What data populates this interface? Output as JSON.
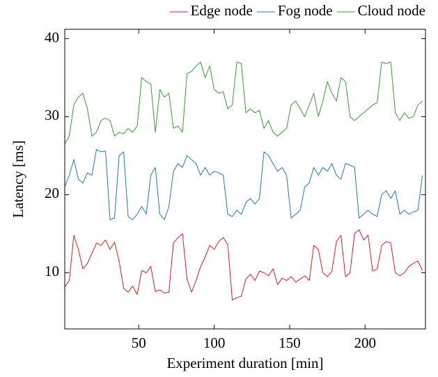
{
  "chart_data": {
    "type": "line",
    "xlabel": "Experiment duration [min]",
    "ylabel": "Latency [ms]",
    "x": [
      1,
      4,
      7,
      10,
      13,
      16,
      19,
      22,
      25,
      28,
      31,
      34,
      37,
      40,
      43,
      46,
      49,
      52,
      55,
      58,
      61,
      64,
      67,
      70,
      73,
      76,
      79,
      82,
      85,
      88,
      91,
      94,
      97,
      100,
      103,
      106,
      109,
      112,
      115,
      118,
      121,
      124,
      127,
      130,
      133,
      136,
      139,
      142,
      145,
      148,
      151,
      154,
      157,
      160,
      163,
      166,
      169,
      172,
      175,
      178,
      181,
      184,
      187,
      190,
      193,
      196,
      199,
      202,
      205,
      208,
      211,
      214,
      217,
      220,
      223,
      226,
      229,
      232,
      235,
      238
    ],
    "series": [
      {
        "name": "Edge node",
        "color": "#e31a1c",
        "values": [
          8.2,
          9.0,
          14.8,
          13.0,
          10.5,
          11.2,
          12.5,
          13.8,
          13.5,
          14.2,
          13.0,
          13.9,
          11.5,
          8.0,
          7.5,
          8.3,
          7.2,
          10.3,
          10.0,
          10.8,
          7.6,
          7.8,
          7.4,
          7.5,
          13.8,
          14.5,
          15.0,
          9.2,
          7.5,
          9.0,
          10.8,
          12.0,
          13.5,
          13.0,
          14.0,
          14.5,
          13.6,
          6.5,
          6.8,
          7.0,
          9.2,
          9.8,
          9.0,
          10.2,
          10.0,
          9.6,
          10.5,
          8.5,
          9.3,
          9.0,
          9.5,
          8.8,
          9.2,
          9.6,
          9.0,
          13.5,
          13.0,
          10.0,
          9.5,
          10.2,
          14.0,
          14.8,
          9.5,
          10.0,
          15.0,
          15.5,
          14.2,
          14.8,
          10.2,
          10.5,
          13.5,
          14.0,
          13.8,
          10.0,
          9.6,
          10.0,
          10.8,
          11.2,
          11.5,
          10.3
        ]
      },
      {
        "name": "Fog node",
        "color": "#1f78b4",
        "values": [
          21,
          22.5,
          24.5,
          22,
          21.5,
          22.8,
          22.5,
          25.8,
          25.5,
          25.6,
          16.8,
          17,
          25,
          25.5,
          17.2,
          16.8,
          17.5,
          18.5,
          17.5,
          22.5,
          23.5,
          17.5,
          16.8,
          18.5,
          23,
          24,
          23.5,
          25,
          24.5,
          24,
          22.5,
          23.5,
          22.5,
          23,
          22.8,
          22.5,
          17.5,
          17.2,
          18,
          17.5,
          19,
          19.5,
          18.8,
          19.5,
          25.5,
          25,
          24,
          23,
          23.5,
          22.5,
          17,
          17.5,
          18,
          21,
          21.5,
          23.5,
          22.5,
          23.5,
          23,
          24,
          22.5,
          22,
          24,
          23.8,
          23.5,
          17,
          17.5,
          18,
          17.5,
          17.2,
          20,
          20.5,
          19.5,
          20.5,
          17.5,
          18,
          17.5,
          17.8,
          18,
          22.5
        ]
      },
      {
        "name": "Cloud node",
        "color": "#33a02c",
        "values": [
          26.5,
          27.5,
          31.5,
          32.5,
          33,
          31,
          27.5,
          28,
          29.5,
          29.8,
          29.5,
          27.5,
          28,
          27.8,
          28.5,
          28,
          28.8,
          35,
          34.5,
          34.2,
          28,
          33.5,
          32.5,
          33,
          28.5,
          28.8,
          28,
          35.5,
          35.8,
          36.5,
          37,
          35,
          36.5,
          33.5,
          33,
          33.2,
          31,
          31.5,
          37,
          36.8,
          30.5,
          31,
          30.5,
          30.8,
          28.5,
          29.5,
          28,
          27.5,
          28,
          28.5,
          31.5,
          32,
          31,
          30,
          31.5,
          33,
          30,
          32,
          34.5,
          33,
          32,
          35,
          34.5,
          30,
          29.5,
          30,
          30.5,
          31,
          31.5,
          31.8,
          37,
          36.8,
          37,
          30.5,
          29.5,
          30.5,
          29.8,
          30,
          31.5,
          32
        ]
      }
    ],
    "xlim": [
      1,
      240
    ],
    "ylim": [
      2.8,
      41.2
    ],
    "xticks": [
      50,
      100,
      150,
      200
    ],
    "yticks": [
      10,
      20,
      30,
      40
    ],
    "grid": false,
    "legend": "top"
  }
}
